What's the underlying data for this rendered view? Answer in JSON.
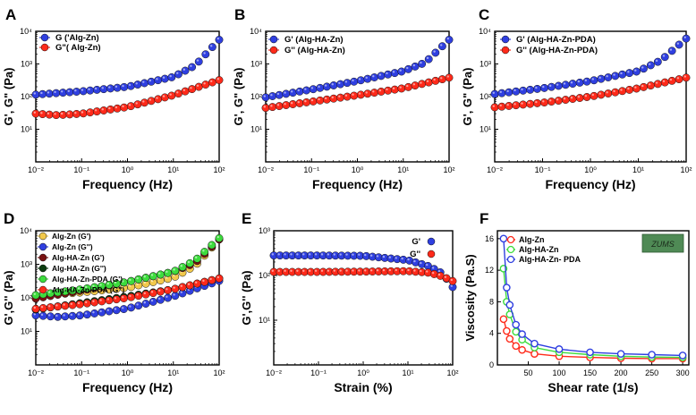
{
  "chart_data": [
    {
      "id": "A",
      "panel_label": "A",
      "type": "scatter",
      "xscale": "log",
      "yscale": "log",
      "xlabel": "Frequency (Hz)",
      "ylabel": "G', G\" (Pa)",
      "xlim": [
        0.01,
        100
      ],
      "ylim": [
        1,
        10000
      ],
      "xticks": [
        "10⁻²",
        "10⁻¹",
        "10⁰",
        "10¹",
        "10²"
      ],
      "yticks": [
        "10¹",
        "10²",
        "10³",
        "10⁴"
      ],
      "legend_position": "top-left",
      "series": [
        {
          "name": "G ('Alg-Zn)",
          "color": "#2f3fe0",
          "x": [
            0.01,
            0.1,
            1,
            10,
            30,
            100
          ],
          "y": [
            115,
            145,
            200,
            400,
            900,
            5500
          ]
        },
        {
          "name": "G\"( Alg-Zn)",
          "color": "#ff2a1a",
          "x": [
            0.01,
            0.03,
            0.1,
            1,
            10,
            100
          ],
          "y": [
            30,
            27,
            30,
            48,
            110,
            320
          ]
        }
      ]
    },
    {
      "id": "B",
      "panel_label": "B",
      "type": "scatter",
      "xscale": "log",
      "yscale": "log",
      "xlabel": "Frequency (Hz)",
      "ylabel": "G', G\" (Pa)",
      "xlim": [
        0.01,
        100
      ],
      "ylim": [
        1,
        10000
      ],
      "xticks": [
        "10⁻²",
        "10⁻¹",
        "10⁰",
        "10¹",
        "10²"
      ],
      "yticks": [
        "10¹",
        "10²",
        "10³",
        "10⁴"
      ],
      "legend_position": "top-left",
      "series": [
        {
          "name": "G' (Alg-HA-Zn)",
          "color": "#2f3fe0",
          "x": [
            0.01,
            0.1,
            1,
            10,
            30,
            100
          ],
          "y": [
            95,
            165,
            300,
            600,
            1100,
            5500
          ]
        },
        {
          "name": "G'' (Alg-HA-Zn)",
          "color": "#ff2a1a",
          "x": [
            0.01,
            0.1,
            1,
            10,
            100
          ],
          "y": [
            45,
            70,
            110,
            180,
            380
          ]
        }
      ]
    },
    {
      "id": "C",
      "panel_label": "C",
      "type": "scatter",
      "xscale": "log",
      "yscale": "log",
      "xlabel": "Frequency (Hz)",
      "ylabel": "G', G\" (Pa)",
      "xlim": [
        0.01,
        100
      ],
      "ylim": [
        1,
        10000
      ],
      "xticks": [
        "10⁻²",
        "10⁻¹",
        "10⁰",
        "10¹",
        "10²"
      ],
      "yticks": [
        "10¹",
        "10²",
        "10³",
        "10⁴"
      ],
      "legend_position": "top-left",
      "series": [
        {
          "name": "G' (Alg-HA-Zn-PDA)",
          "color": "#2f3fe0",
          "x": [
            0.01,
            0.1,
            1,
            10,
            30,
            100
          ],
          "y": [
            120,
            180,
            300,
            600,
            1300,
            6000
          ]
        },
        {
          "name": "G'' (Alg-HA-Zn-PDA)",
          "color": "#ff2a1a",
          "x": [
            0.01,
            0.1,
            1,
            10,
            100
          ],
          "y": [
            47,
            65,
            100,
            180,
            380
          ]
        }
      ]
    },
    {
      "id": "D",
      "panel_label": "D",
      "type": "scatter",
      "xscale": "log",
      "yscale": "log",
      "xlabel": "Frequency (Hz)",
      "ylabel": "G',G'' (Pa)",
      "xlim": [
        0.01,
        100
      ],
      "ylim": [
        1,
        10000
      ],
      "xticks": [
        "10⁻²",
        "10⁻¹",
        "10⁰",
        "10¹",
        "10²"
      ],
      "yticks": [
        "10¹",
        "10²",
        "10³",
        "10⁴"
      ],
      "legend_position": "top-left",
      "series": [
        {
          "name": "Alg-Zn (G')",
          "color": "#f2c94c",
          "x": [
            0.01,
            0.1,
            1,
            10,
            30,
            100
          ],
          "y": [
            115,
            145,
            200,
            400,
            900,
            5500
          ]
        },
        {
          "name": "Alg-Zn (G'')",
          "color": "#2f3fe0",
          "x": [
            0.01,
            0.03,
            0.1,
            1,
            10,
            100
          ],
          "y": [
            30,
            27,
            30,
            48,
            110,
            320
          ]
        },
        {
          "name": "Alg-HA-Zn (G')",
          "color": "#7a1212",
          "x": [
            0.01,
            0.1,
            1,
            10,
            30,
            100
          ],
          "y": [
            95,
            165,
            300,
            600,
            1100,
            5500
          ]
        },
        {
          "name": "Alg-HA-Zn (G'')",
          "color": "#0c3d10",
          "x": [
            0.01,
            0.1,
            1,
            10,
            100
          ],
          "y": [
            45,
            70,
            110,
            180,
            380
          ]
        },
        {
          "name": "Alg-HA-Zn-PDA (G')",
          "color": "#3ddc3d",
          "x": [
            0.01,
            0.1,
            1,
            10,
            30,
            100
          ],
          "y": [
            120,
            180,
            300,
            600,
            1300,
            6000
          ]
        },
        {
          "name": "Alg-HA-Zn-PDA (G'')",
          "color": "#ff2a1a",
          "x": [
            0.01,
            0.1,
            1,
            10,
            100
          ],
          "y": [
            47,
            65,
            100,
            180,
            380
          ]
        }
      ]
    },
    {
      "id": "E",
      "panel_label": "E",
      "type": "scatter",
      "xscale": "log",
      "yscale": "log",
      "xlabel": "Strain (%)",
      "ylabel": "G',G'' (Pa)",
      "xlim": [
        0.01,
        100
      ],
      "ylim": [
        1,
        1000
      ],
      "xticks": [
        "10⁻²",
        "10⁻¹",
        "10⁰",
        "10¹",
        "10²"
      ],
      "yticks": [
        "10¹",
        "10²",
        "10³"
      ],
      "legend_position": "top-right",
      "series": [
        {
          "name": "G'",
          "color": "#2f3fe0",
          "x": [
            0.01,
            0.1,
            1,
            10,
            30,
            60,
            100
          ],
          "y": [
            280,
            280,
            275,
            220,
            160,
            110,
            55
          ]
        },
        {
          "name": "G''",
          "color": "#ff2a1a",
          "x": [
            0.01,
            0.1,
            1,
            10,
            30,
            60,
            100
          ],
          "y": [
            120,
            120,
            122,
            125,
            115,
            95,
            75
          ]
        }
      ]
    },
    {
      "id": "F",
      "panel_label": "F",
      "type": "line",
      "xscale": "linear",
      "yscale": "linear",
      "xlabel": "Shear rate (1/s)",
      "ylabel": "Viscosity (Pa.S)",
      "xlim": [
        0,
        310
      ],
      "ylim": [
        0,
        17
      ],
      "xticks": [
        "50",
        "100",
        "150",
        "200",
        "250",
        "300"
      ],
      "yticks": [
        "0",
        "4",
        "8",
        "12",
        "16"
      ],
      "legend_position": "top-left",
      "inset_label": "ZUMS",
      "series": [
        {
          "name": "Alg-Zn",
          "color": "#ff2a1a",
          "x": [
            10,
            15,
            20,
            30,
            40,
            60,
            100,
            150,
            200,
            250,
            300
          ],
          "y": [
            5.8,
            4.3,
            3.3,
            2.4,
            1.9,
            1.4,
            1.1,
            0.95,
            0.85,
            0.8,
            0.8
          ]
        },
        {
          "name": "Alg-HA-Zn",
          "color": "#3ddc3d",
          "x": [
            10,
            15,
            20,
            30,
            40,
            60,
            100,
            150,
            200,
            250,
            300
          ],
          "y": [
            12.2,
            8.0,
            6.4,
            4.2,
            3.2,
            2.2,
            1.6,
            1.3,
            1.1,
            1.0,
            0.95
          ]
        },
        {
          "name": "Alg-HA-Zn- PDA",
          "color": "#2f3fe0",
          "x": [
            10,
            15,
            20,
            30,
            40,
            60,
            100,
            150,
            200,
            250,
            300
          ],
          "y": [
            16,
            9.8,
            7.6,
            5.1,
            3.9,
            2.7,
            2.0,
            1.6,
            1.4,
            1.3,
            1.2
          ]
        }
      ]
    }
  ]
}
